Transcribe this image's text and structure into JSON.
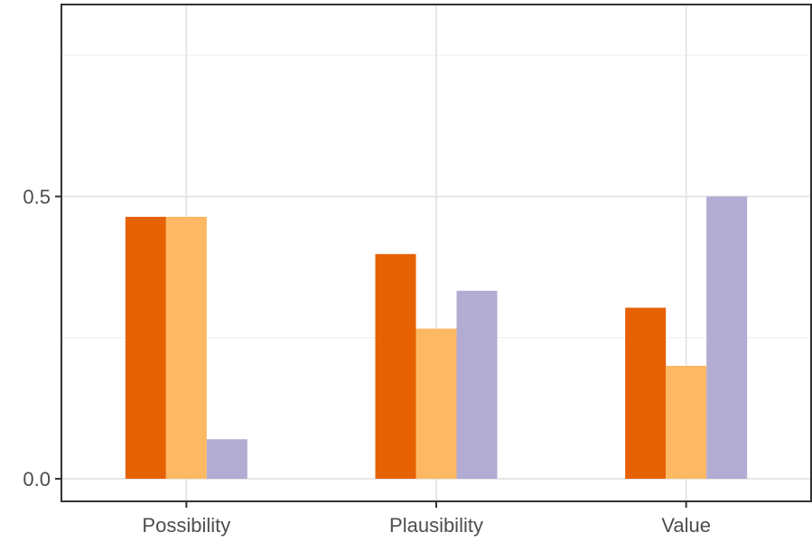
{
  "chart_data": {
    "type": "bar",
    "categories": [
      "Possibility",
      "Plausibility",
      "Value"
    ],
    "series": [
      {
        "values": [
          0.464,
          0.398,
          0.303
        ],
        "color": "#e66101"
      },
      {
        "values": [
          0.464,
          0.266,
          0.2
        ],
        "color": "#fdb863"
      },
      {
        "values": [
          0.07,
          0.333,
          0.5
        ],
        "color": "#b2abd2"
      }
    ],
    "yticks": [
      0.0,
      0.5
    ],
    "ytick_labels": [
      "0.0",
      "0.5"
    ],
    "ylim": [
      -0.04,
      0.84
    ],
    "grid": true,
    "legend": "none",
    "title": "",
    "xlabel": "",
    "ylabel": ""
  }
}
